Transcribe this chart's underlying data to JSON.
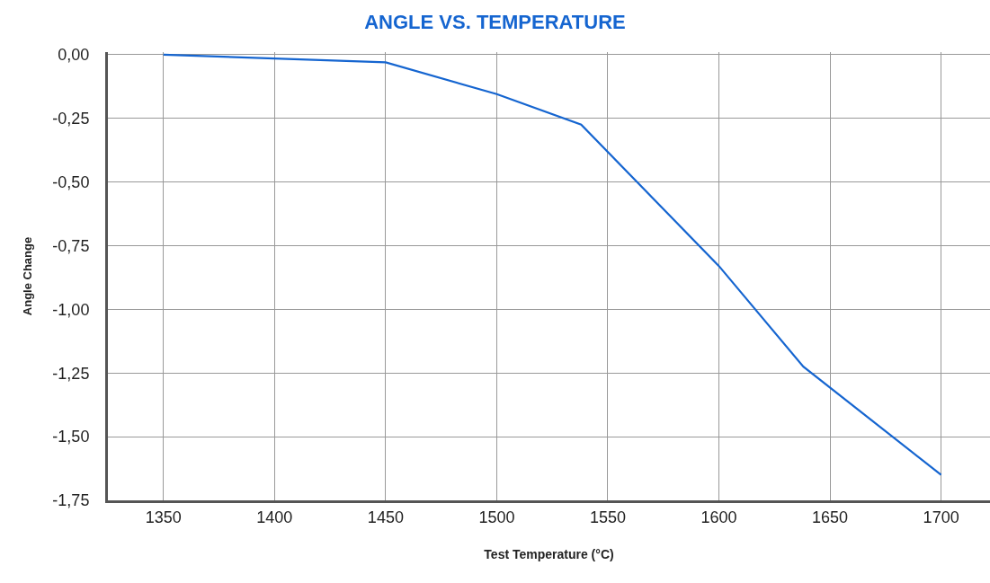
{
  "chart_data": {
    "type": "line",
    "title": "ANGLE VS. TEMPERATURE",
    "xlabel": "Test Temperature (°C)",
    "ylabel": "Angle Change",
    "x": [
      1350,
      1450,
      1500,
      1538,
      1600,
      1638,
      1700
    ],
    "series": [
      {
        "color": "#1565d0",
        "values": [
          0.0,
          -0.03,
          -0.155,
          -0.275,
          -0.83,
          -1.225,
          -1.65
        ]
      }
    ],
    "xlim": [
      1325,
      1722
    ],
    "xticks": [
      1350,
      1400,
      1450,
      1500,
      1550,
      1600,
      1650,
      1700
    ],
    "ylim": [
      -1.75,
      0.01
    ],
    "yticks": [
      {
        "value": 0,
        "label": "0,00"
      },
      {
        "value": -0.25,
        "label": "-0,25"
      },
      {
        "value": -0.5,
        "label": "-0,50"
      },
      {
        "value": -0.75,
        "label": "-0,75"
      },
      {
        "value": -1,
        "label": "-1,00"
      },
      {
        "value": -1.25,
        "label": "-1,25"
      },
      {
        "value": -1.5,
        "label": "-1,50"
      },
      {
        "value": -1.75,
        "label": "-1,75"
      }
    ],
    "grid": true,
    "marker": "none",
    "line_style": "solid"
  }
}
